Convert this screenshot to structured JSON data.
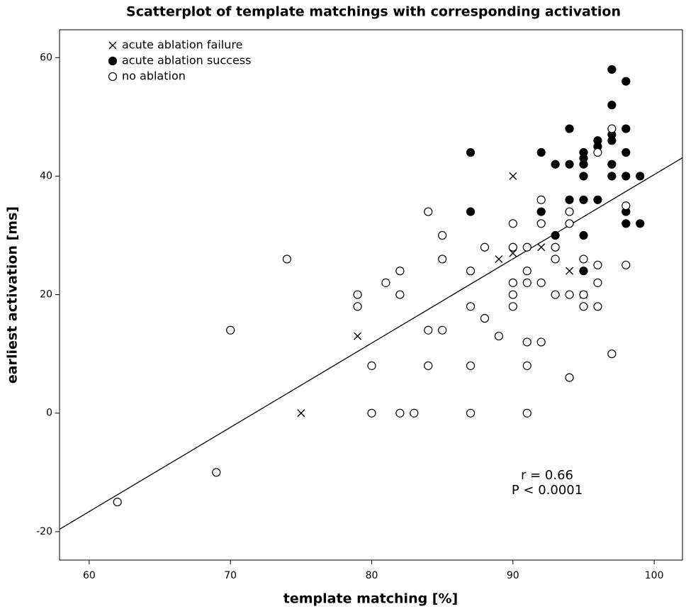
{
  "chart_data": {
    "type": "scatter",
    "title": "Scatterplot of template matchings with corresponding activation",
    "x_label": "template matching [%]",
    "y_label": "earliest activation [ms]",
    "xlim": [
      57.9,
      102
    ],
    "ylim": [
      -24.8,
      64.7
    ],
    "xticks": [
      60,
      70,
      80,
      90,
      100
    ],
    "yticks": [
      -20,
      0,
      20,
      40,
      60
    ],
    "legend": "upper left",
    "series": [
      {
        "name": "acute ablation failure",
        "color": "#000000",
        "marker": "x",
        "x": [
          75,
          79,
          89,
          90,
          90,
          92,
          94,
          95
        ],
        "y": [
          0,
          13,
          26,
          27,
          40,
          28,
          24,
          20
        ]
      },
      {
        "name": "acute ablation success",
        "color": "#000000",
        "marker": "filled",
        "x": [
          87,
          87,
          92,
          92,
          93,
          93,
          94,
          94,
          94,
          95,
          95,
          95,
          95,
          95,
          95,
          95,
          96,
          96,
          96,
          97,
          97,
          97,
          97,
          97,
          97,
          98,
          98,
          98,
          98,
          98,
          98,
          99,
          99
        ],
        "y": [
          44,
          34,
          44,
          34,
          42,
          30,
          48,
          42,
          36,
          44,
          43,
          42,
          40,
          36,
          30,
          24,
          46,
          45,
          36,
          58,
          52,
          47,
          46,
          42,
          40,
          56,
          48,
          44,
          40,
          34,
          32,
          40,
          32
        ]
      },
      {
        "name": "no ablation",
        "color": "#000000",
        "marker": "open",
        "x": [
          62,
          69,
          70,
          74,
          79,
          79,
          80,
          80,
          81,
          82,
          82,
          82,
          83,
          84,
          84,
          84,
          85,
          85,
          85,
          87,
          87,
          87,
          87,
          88,
          88,
          89,
          90,
          90,
          90,
          90,
          90,
          91,
          91,
          91,
          91,
          91,
          91,
          92,
          92,
          92,
          92,
          93,
          93,
          93,
          94,
          94,
          94,
          94,
          95,
          95,
          95,
          96,
          96,
          96,
          96,
          97,
          97,
          98,
          98
        ],
        "y": [
          -15,
          -10,
          14,
          26,
          20,
          18,
          8,
          0,
          22,
          24,
          20,
          0,
          0,
          34,
          14,
          8,
          30,
          26,
          14,
          24,
          18,
          8,
          0,
          28,
          16,
          13,
          32,
          28,
          22,
          20,
          18,
          28,
          24,
          22,
          12,
          8,
          0,
          36,
          32,
          22,
          12,
          28,
          26,
          20,
          34,
          32,
          20,
          6,
          26,
          20,
          18,
          44,
          25,
          22,
          18,
          48,
          10,
          35,
          25
        ]
      }
    ],
    "fit_line": {
      "color": "#000000",
      "x": [
        57.9,
        102
      ],
      "y": [
        -19.6,
        43.1
      ]
    },
    "annotations": [
      "r = 0.66",
      "P < 0.0001"
    ]
  }
}
